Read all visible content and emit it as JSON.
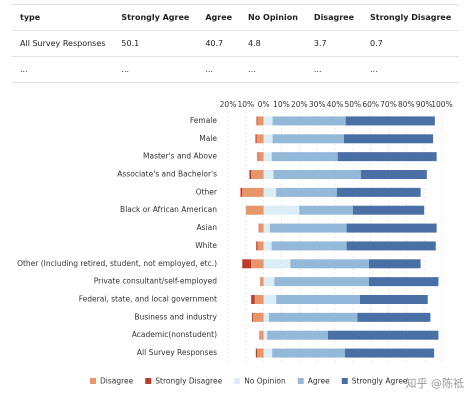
{
  "table": {
    "columns": [
      "type",
      "Strongly Agree",
      "Agree",
      "No Opinion",
      "Disagree",
      "Strongly Disagree"
    ],
    "rows": [
      [
        "All Survey Responses",
        "50.1",
        "40.7",
        "4.8",
        "3.7",
        "0.7"
      ],
      [
        "...",
        "...",
        "...",
        "...",
        "...",
        "..."
      ]
    ]
  },
  "watermark": "知乎 @陈祗",
  "chart_data": {
    "type": "bar",
    "orientation": "horizontal",
    "stacking": "diverging",
    "categories": [
      "Female",
      "Male",
      "Master's and Above",
      "Associate's and Bachelor's",
      "Other",
      "Black or African American",
      "Asian",
      "White",
      "Other (Including retired, student, not employed, etc.)",
      "Private consultant/self-employed",
      "Federal, state, and local government",
      "Business and industry",
      "Academic(nonstudent)",
      "All Survey Responses"
    ],
    "series": [
      {
        "name": "Disagree",
        "color": "#e8956a",
        "negative": true,
        "values": [
          3.5,
          4,
          3,
          7,
          12,
          10,
          2.5,
          3.5,
          7,
          2,
          5,
          6,
          2,
          3.7
        ]
      },
      {
        "name": "Strongly Disagree",
        "color": "#c0392b",
        "negative": true,
        "values": [
          0.5,
          0.6,
          0.5,
          1,
          1,
          0,
          0.3,
          0.7,
          5,
          0,
          2,
          0.5,
          0.3,
          0.7
        ]
      },
      {
        "name": "No Opinion",
        "color": "#dbeef7",
        "values": [
          5,
          5,
          4.5,
          5.5,
          7,
          20,
          3.5,
          4.5,
          15,
          6,
          7,
          3,
          2,
          4.8
        ]
      },
      {
        "name": "Agree",
        "color": "#93b8d8",
        "values": [
          41,
          40,
          37,
          49,
          34,
          30,
          43,
          42,
          44,
          53,
          47,
          49.5,
          34,
          40.7
        ]
      },
      {
        "name": "Strongly Agree",
        "color": "#4a6fa5",
        "values": [
          50,
          50,
          55.5,
          37,
          47,
          40,
          50.5,
          50,
          29,
          39,
          38,
          41,
          62,
          50.1
        ]
      }
    ],
    "xlim": [
      -20,
      100
    ],
    "xticks": [
      {
        "value": -20,
        "label": "20%"
      },
      {
        "value": -10,
        "label": "10%"
      },
      {
        "value": 0,
        "label": "0%"
      },
      {
        "value": 10,
        "label": "10%"
      },
      {
        "value": 20,
        "label": "20%"
      },
      {
        "value": 30,
        "label": "30%"
      },
      {
        "value": 40,
        "label": "40%"
      },
      {
        "value": 50,
        "label": "50%"
      },
      {
        "value": 60,
        "label": "60%"
      },
      {
        "value": 70,
        "label": "70%"
      },
      {
        "value": 80,
        "label": "80%"
      },
      {
        "value": 90,
        "label": "90%"
      },
      {
        "value": 100,
        "label": "100%"
      }
    ],
    "grid": true,
    "legend": "bottom"
  }
}
